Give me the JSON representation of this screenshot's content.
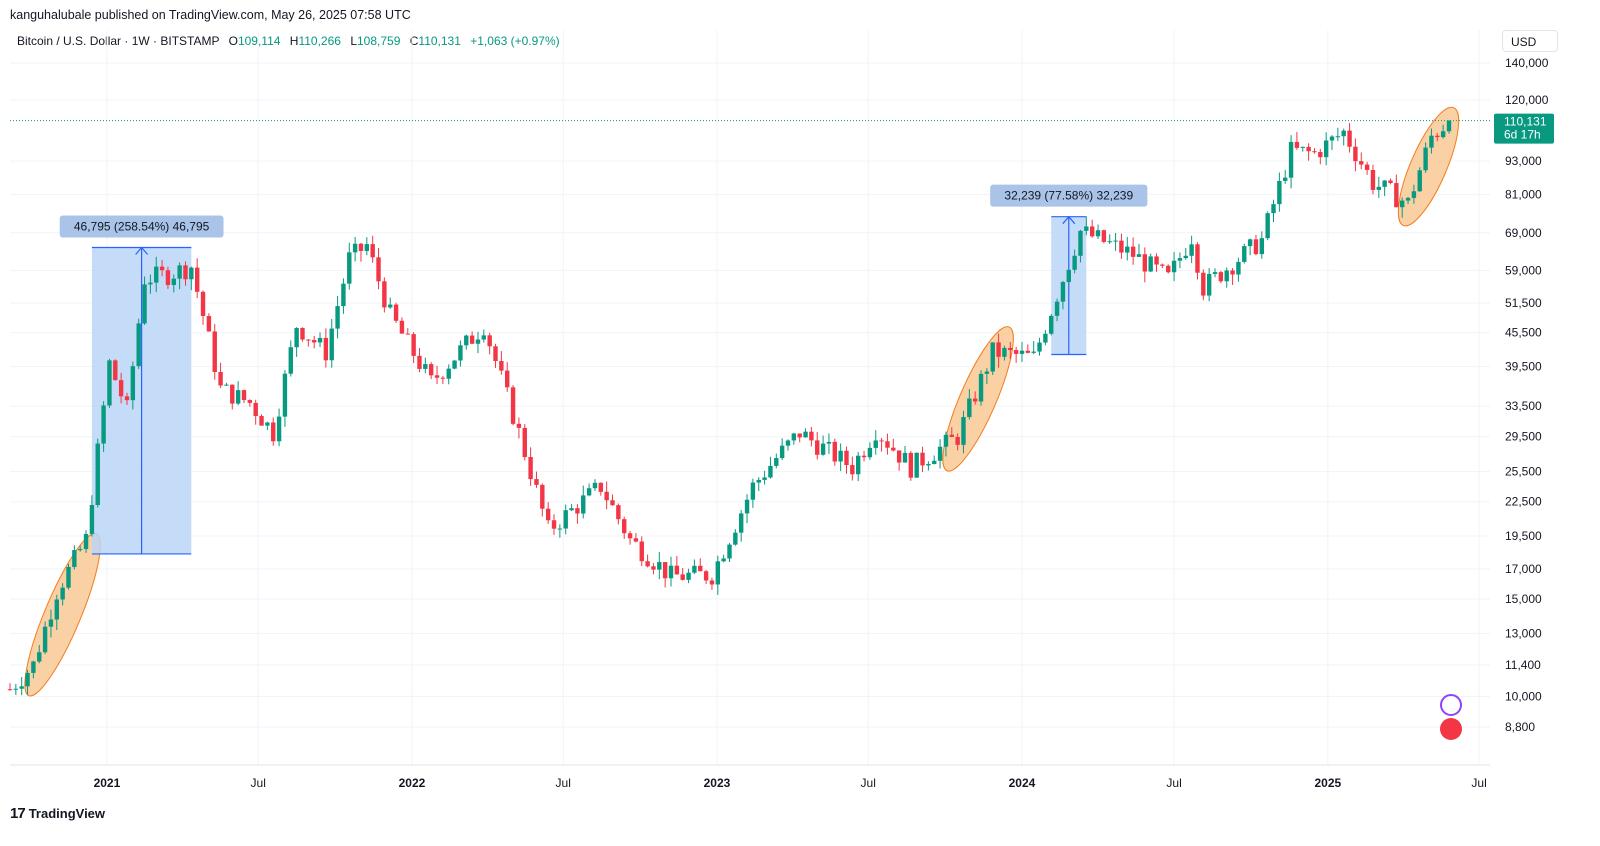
{
  "header": {
    "published": "kanguhalubale published on TradingView.com, May 26, 2025 07:58 UTC",
    "symbol": "Bitcoin / U.S. Dollar · 1W · BITSTAMP",
    "o_label": "O",
    "o": "109,114",
    "h_label": "H",
    "h": "110,266",
    "l_label": "L",
    "l": "108,759",
    "c_label": "C",
    "c": "110,131",
    "change": "+1,063 (+0.97%)",
    "currency": "USD"
  },
  "price_tag": {
    "price": "110,131",
    "countdown": "6d 17h"
  },
  "footer": {
    "brand": "TradingView"
  },
  "colors": {
    "up": "#089981",
    "down": "#f23645",
    "measure_fill": "#bbd6f7",
    "measure_line": "#2962ff",
    "ellipse_fill": "#f7c68e",
    "ellipse_stroke": "#f57c1f"
  },
  "chart_data": {
    "type": "candlestick",
    "interval": "1W",
    "scale": "log",
    "y_ticks": [
      "140,000",
      "120,000",
      "93,000",
      "81,000",
      "69,000",
      "59,000",
      "51,500",
      "45,500",
      "39,500",
      "33,500",
      "29,500",
      "25,500",
      "22,500",
      "19,500",
      "17,000",
      "15,000",
      "13,000",
      "11,400",
      "10,000",
      "8,800"
    ],
    "x_ticks": [
      "2021",
      "Jul",
      "2022",
      "Jul",
      "2023",
      "Jul",
      "2024",
      "Jul",
      "2025",
      "Jul"
    ],
    "last_price": 110131,
    "measurements": [
      {
        "label": "46,795 (258.54%) 46,795",
        "from_date": "2020-12-14",
        "to_date": "2021-04-12",
        "from": 18100,
        "to": 64895
      },
      {
        "label": "32,239 (77.58%) 32,239",
        "from_date": "2024-02-05",
        "to_date": "2024-03-18",
        "from": 41555,
        "to": 73794
      }
    ],
    "highlights": [
      {
        "from_date": "2020-10-05",
        "to_date": "2020-12-14",
        "low": 10500,
        "high": 18800
      },
      {
        "from_date": "2023-10-09",
        "to_date": "2023-12-11",
        "low": 26800,
        "high": 44500
      },
      {
        "from_date": "2025-04-07",
        "to_date": "2025-05-26",
        "low": 74500,
        "high": 111000
      }
    ],
    "anchors": [
      [
        "2020-09-07",
        10300
      ],
      [
        "2020-10-05",
        11400
      ],
      [
        "2020-11-02",
        15500
      ],
      [
        "2020-12-07",
        19200
      ],
      [
        "2021-01-04",
        40000
      ],
      [
        "2021-01-25",
        33000
      ],
      [
        "2021-02-15",
        57000
      ],
      [
        "2021-03-15",
        58000
      ],
      [
        "2021-04-12",
        60000
      ],
      [
        "2021-05-17",
        36000
      ],
      [
        "2021-06-21",
        34000
      ],
      [
        "2021-07-19",
        30000
      ],
      [
        "2021-08-16",
        47000
      ],
      [
        "2021-09-20",
        42000
      ],
      [
        "2021-10-18",
        62000
      ],
      [
        "2021-11-08",
        65500
      ],
      [
        "2021-12-06",
        49000
      ],
      [
        "2022-01-24",
        37000
      ],
      [
        "2022-03-28",
        47000
      ],
      [
        "2022-05-09",
        30000
      ],
      [
        "2022-06-13",
        20000
      ],
      [
        "2022-08-15",
        24000
      ],
      [
        "2022-09-19",
        19200
      ],
      [
        "2022-11-07",
        16500
      ],
      [
        "2022-12-26",
        16600
      ],
      [
        "2023-02-13",
        24000
      ],
      [
        "2023-03-13",
        27000
      ],
      [
        "2023-04-10",
        30000
      ],
      [
        "2023-06-12",
        26000
      ],
      [
        "2023-07-10",
        30400
      ],
      [
        "2023-08-21",
        26000
      ],
      [
        "2023-10-16",
        29500
      ],
      [
        "2023-11-27",
        42000
      ],
      [
        "2024-01-15",
        41000
      ],
      [
        "2024-03-11",
        69500
      ],
      [
        "2024-05-13",
        63000
      ],
      [
        "2024-06-24",
        57000
      ],
      [
        "2024-07-22",
        68000
      ],
      [
        "2024-08-05",
        55000
      ],
      [
        "2024-10-14",
        67000
      ],
      [
        "2024-11-18",
        97000
      ],
      [
        "2024-12-16",
        96000
      ],
      [
        "2025-01-20",
        105000
      ],
      [
        "2025-02-24",
        85000
      ],
      [
        "2025-04-07",
        78000
      ],
      [
        "2025-05-05",
        103000
      ],
      [
        "2025-05-26",
        110131
      ]
    ]
  }
}
